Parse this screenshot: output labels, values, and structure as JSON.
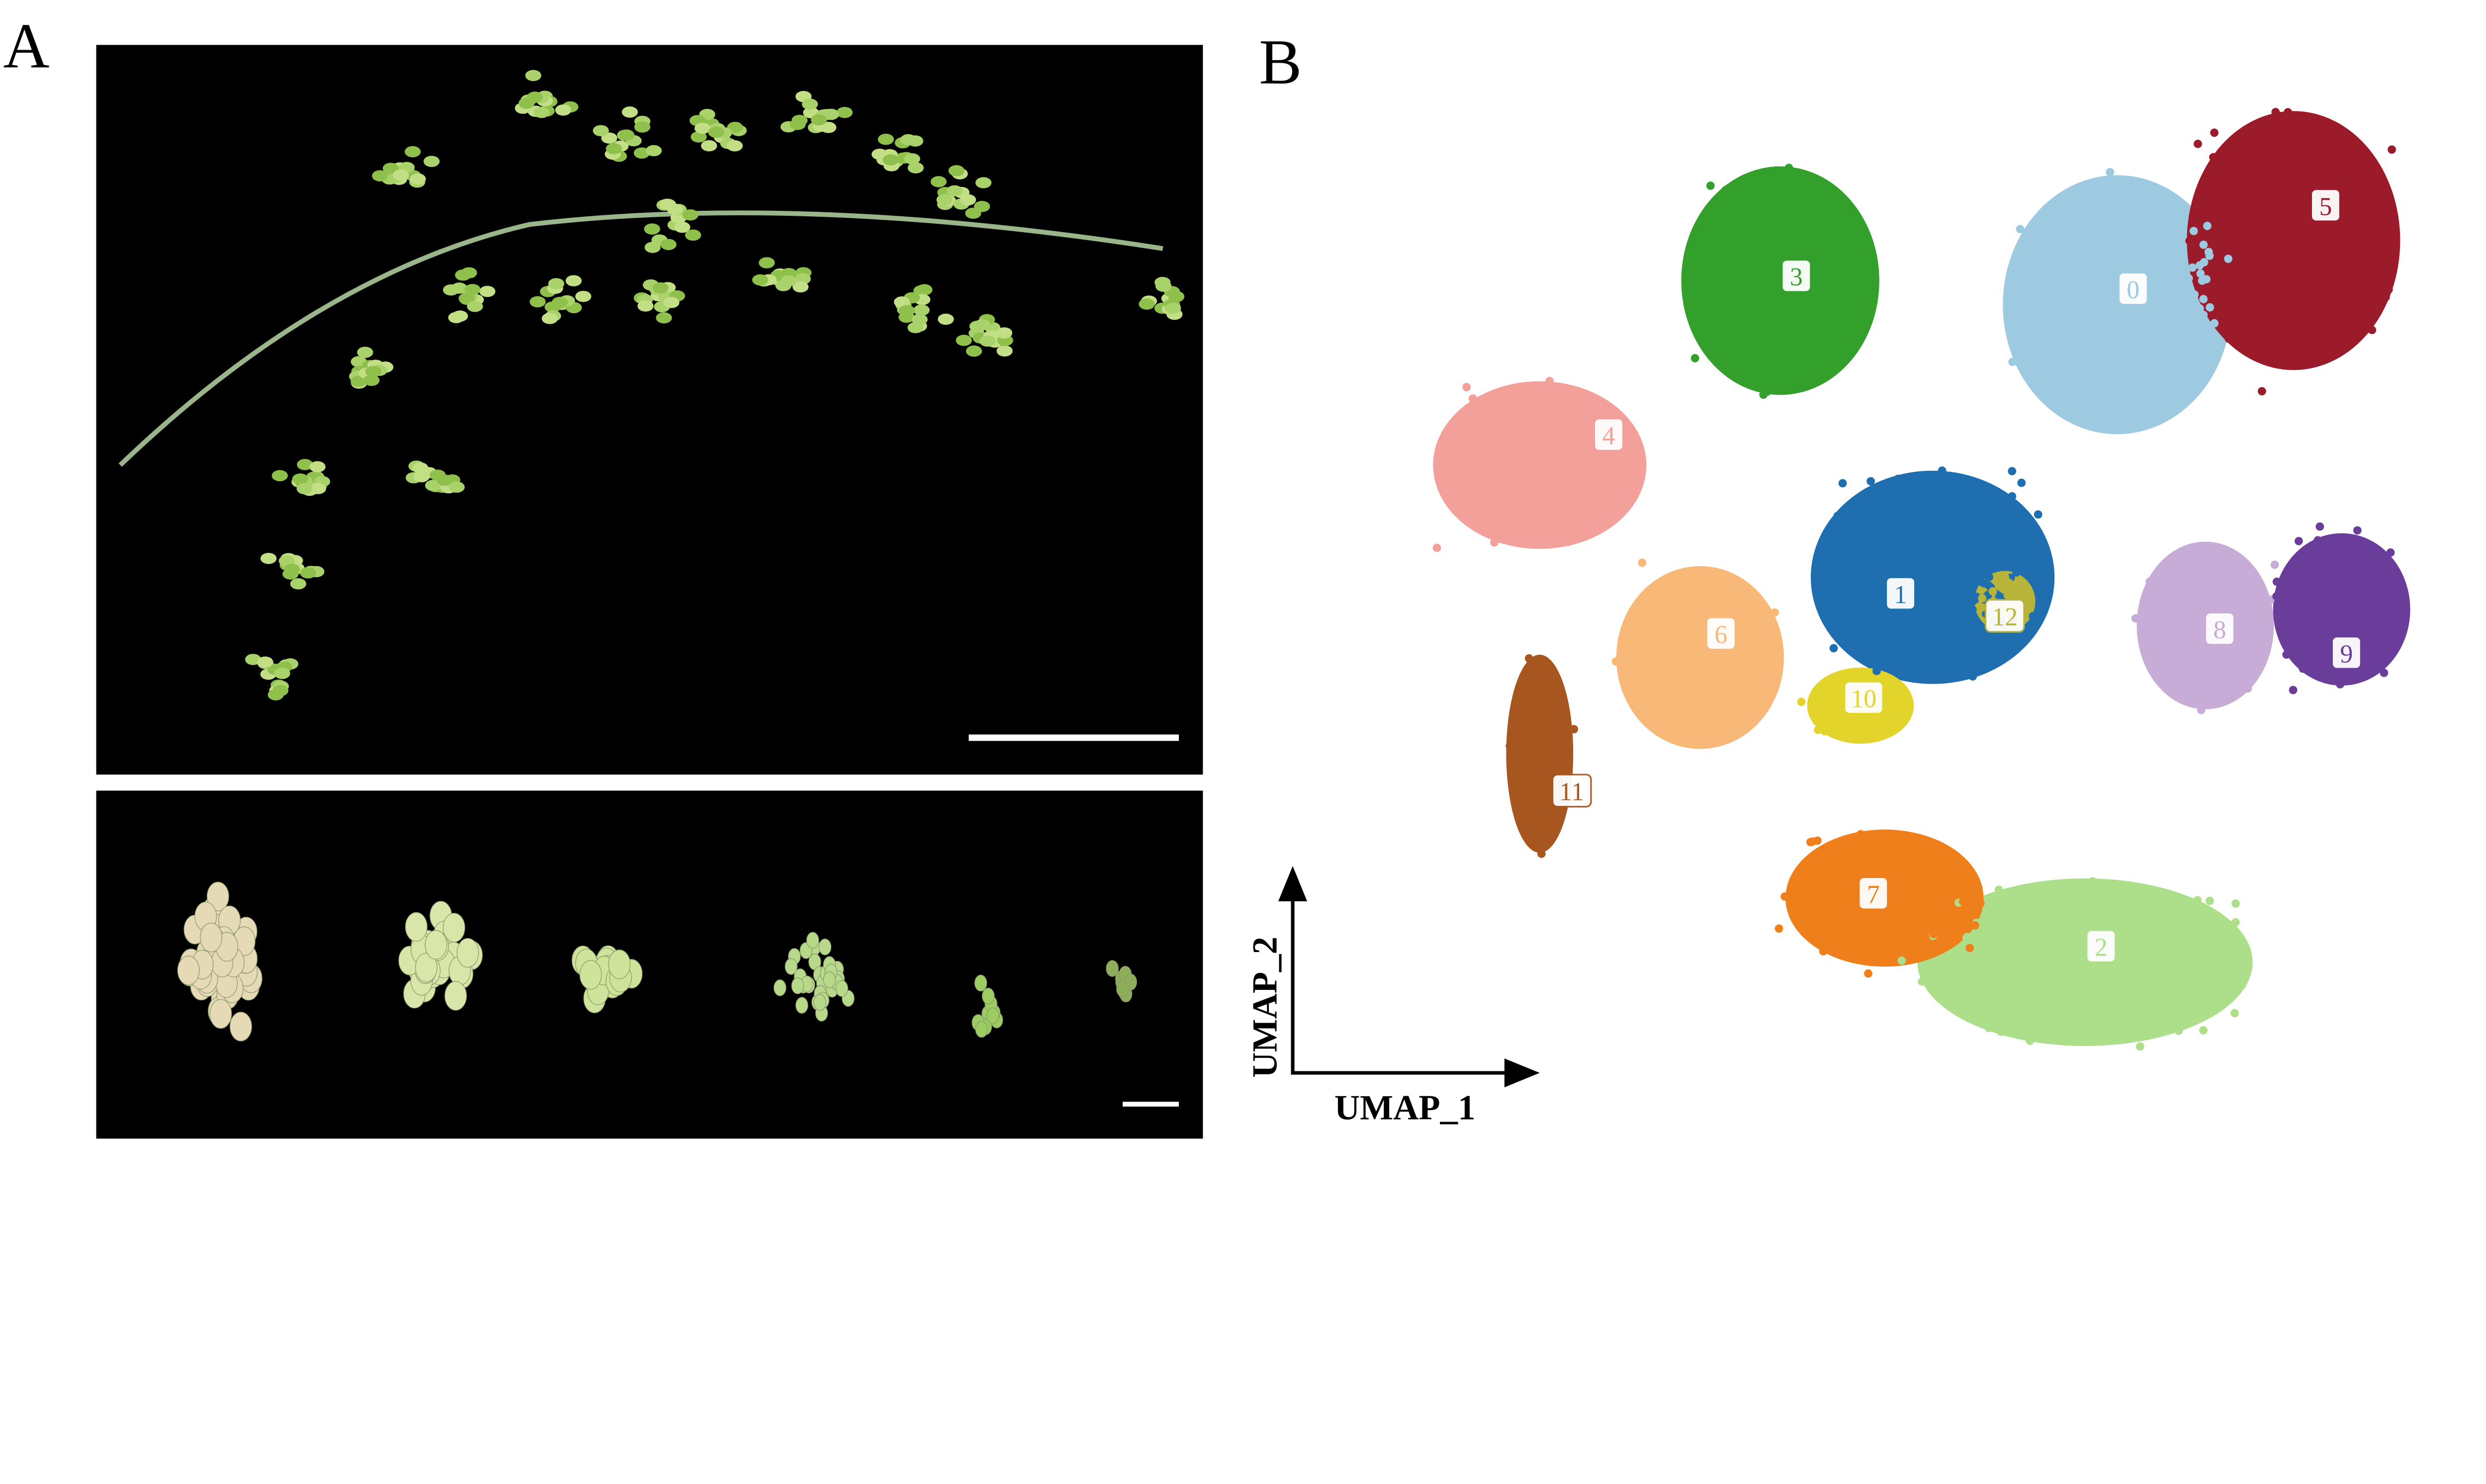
{
  "panels": {
    "a_label": "A",
    "b_label": "B"
  },
  "photos": {
    "top_background": "#000000",
    "bottom_background": "#000000",
    "scale_bar_color": "#ffffff",
    "bottom_bunch_count": 6
  },
  "chart_data": {
    "type": "scatter",
    "xlabel": "UMAP_1",
    "ylabel": "UMAP_2",
    "grid": false,
    "legend": "none (cluster labels drawn on the plot)",
    "clusters": [
      {
        "label": "0",
        "color": "#9ecae1"
      },
      {
        "label": "1",
        "color": "#1f6fb0"
      },
      {
        "label": "2",
        "color": "#addf8a"
      },
      {
        "label": "3",
        "color": "#33a02c"
      },
      {
        "label": "4",
        "color": "#f4a09a"
      },
      {
        "label": "5",
        "color": "#9b1b2a"
      },
      {
        "label": "6",
        "color": "#f8b878"
      },
      {
        "label": "7",
        "color": "#ef7f1a"
      },
      {
        "label": "8",
        "color": "#c6acd6"
      },
      {
        "label": "9",
        "color": "#6a3d9a"
      },
      {
        "label": "10",
        "color": "#e2d42a"
      },
      {
        "label": "11",
        "color": "#a8561f"
      },
      {
        "label": "12",
        "color": "#b8b43a"
      }
    ]
  }
}
